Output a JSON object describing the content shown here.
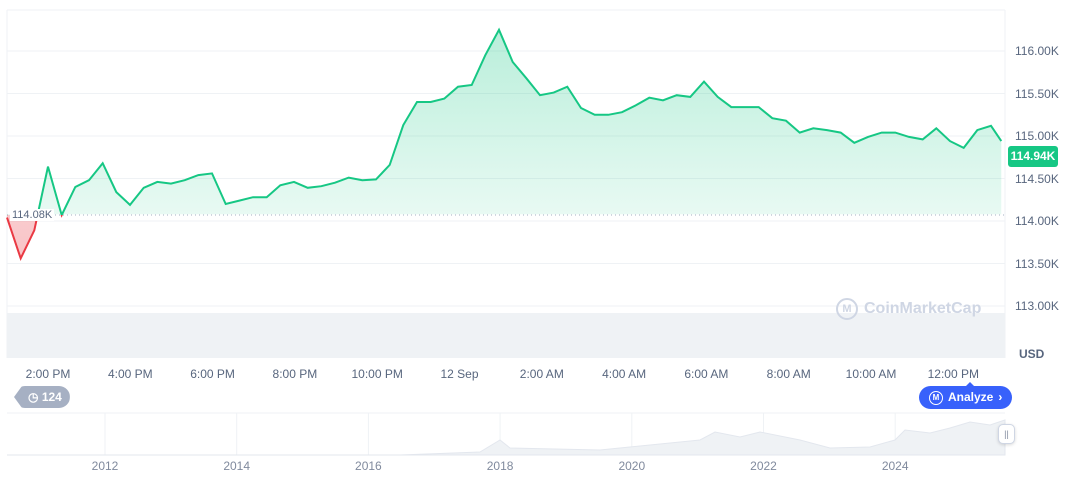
{
  "chart_data": {
    "type": "area",
    "currency": "USD",
    "baseline": 114.08,
    "baseline_label": "114.08K",
    "current_price_label": "114.94K",
    "ylim": [
      112.9,
      116.5
    ],
    "y_ticks": [
      {
        "value": 116.0,
        "label": "116.00K"
      },
      {
        "value": 115.5,
        "label": "115.50K"
      },
      {
        "value": 115.0,
        "label": "115.00K"
      },
      {
        "value": 114.5,
        "label": "114.50K"
      },
      {
        "value": 114.0,
        "label": "114.00K"
      },
      {
        "value": 113.5,
        "label": "113.50K"
      },
      {
        "value": 113.0,
        "label": "113.00K"
      }
    ],
    "x_ticks": [
      "2:00 PM",
      "4:00 PM",
      "6:00 PM",
      "8:00 PM",
      "10:00 PM",
      "12 Sep",
      "2:00 AM",
      "4:00 AM",
      "6:00 AM",
      "8:00 AM",
      "10:00 AM",
      "12:00 PM"
    ],
    "grid": true,
    "colors": {
      "up": "#16c784",
      "down": "#ea3943"
    },
    "series": [
      {
        "x": [
          "13:00",
          "13:20",
          "13:40",
          "14:00",
          "14:20",
          "14:40",
          "15:00",
          "15:20",
          "15:40",
          "16:00",
          "16:20",
          "16:40",
          "17:00",
          "17:20",
          "17:40",
          "18:00",
          "18:20",
          "18:40",
          "19:00",
          "19:20",
          "19:40",
          "20:00",
          "20:20",
          "20:40",
          "21:00",
          "21:20",
          "21:40",
          "22:00",
          "22:20",
          "22:40",
          "23:00",
          "23:20",
          "23:40",
          "00:00",
          "00:20",
          "00:40",
          "01:00",
          "01:20",
          "01:40",
          "02:00",
          "02:20",
          "02:40",
          "03:00",
          "03:20",
          "03:40",
          "04:00",
          "04:20",
          "04:40",
          "05:00",
          "05:20",
          "05:40",
          "06:00",
          "06:20",
          "06:40",
          "07:00",
          "07:20",
          "07:40",
          "08:00",
          "08:20",
          "08:40",
          "09:00",
          "09:20",
          "09:40",
          "10:00",
          "10:20",
          "10:40",
          "11:00",
          "11:20",
          "11:40",
          "12:00",
          "12:20",
          "12:40",
          "13:00",
          "13:15"
        ],
        "values": [
          114.04,
          113.56,
          113.89,
          114.64,
          114.07,
          114.4,
          114.48,
          114.68,
          114.34,
          114.19,
          114.39,
          114.46,
          114.44,
          114.48,
          114.54,
          114.56,
          114.2,
          114.24,
          114.28,
          114.28,
          114.42,
          114.46,
          114.39,
          114.41,
          114.45,
          114.51,
          114.48,
          114.49,
          114.66,
          115.13,
          115.4,
          115.4,
          115.44,
          115.58,
          115.6,
          115.95,
          116.25,
          115.87,
          115.68,
          115.48,
          115.51,
          115.58,
          115.33,
          115.25,
          115.25,
          115.28,
          115.36,
          115.45,
          115.42,
          115.48,
          115.46,
          115.64,
          115.46,
          115.34,
          115.34,
          115.34,
          115.21,
          115.18,
          115.04,
          115.09,
          115.07,
          115.04,
          114.92,
          114.99,
          115.04,
          115.04,
          114.99,
          114.96,
          115.09,
          114.94,
          114.86,
          115.07,
          115.12,
          114.94
        ]
      }
    ],
    "navigator": {
      "year_labels": [
        "2012",
        "2014",
        "2016",
        "2018",
        "2020",
        "2022",
        "2024"
      ]
    }
  },
  "watermark": "CoinMarketCap",
  "history_badge": {
    "icon": "history-icon",
    "count": "124"
  },
  "analyze_button": {
    "label": "Analyze",
    "icon": "cmc-logo-icon"
  }
}
